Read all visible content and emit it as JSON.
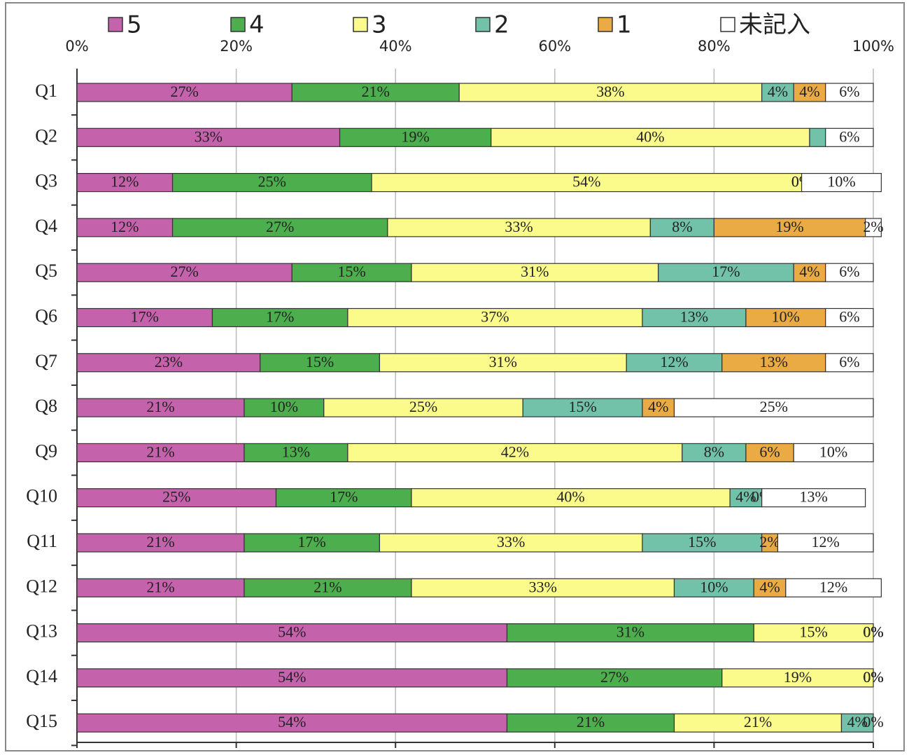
{
  "chart_data": {
    "type": "stacked_bar_horizontal",
    "categories": [
      "Q1",
      "Q2",
      "Q3",
      "Q4",
      "Q5",
      "Q6",
      "Q7",
      "Q8",
      "Q9",
      "Q10",
      "Q11",
      "Q12",
      "Q13",
      "Q14",
      "Q15"
    ],
    "series": [
      {
        "name": "5",
        "color": "#c462ac",
        "values": [
          27,
          33,
          12,
          12,
          27,
          17,
          23,
          21,
          21,
          25,
          21,
          21,
          54,
          54,
          54
        ],
        "value_labels": [
          "27%",
          "33%",
          "12%",
          "12%",
          "27%",
          "17%",
          "23%",
          "21%",
          "21%",
          "25%",
          "21%",
          "21%",
          "54%",
          "54%",
          "54%"
        ]
      },
      {
        "name": "4",
        "color": "#4cae4c",
        "values": [
          21,
          19,
          25,
          27,
          15,
          17,
          15,
          10,
          13,
          17,
          17,
          21,
          31,
          27,
          21
        ],
        "value_labels": [
          "21%",
          "19%",
          "25%",
          "27%",
          "15%",
          "17%",
          "15%",
          "10%",
          "13%",
          "17%",
          "17%",
          "21%",
          "31%",
          "27%",
          "21%"
        ]
      },
      {
        "name": "3",
        "color": "#fbfb8c",
        "values": [
          38,
          40,
          54,
          33,
          31,
          37,
          31,
          25,
          42,
          40,
          33,
          33,
          15,
          19,
          21
        ],
        "value_labels": [
          "38%",
          "40%",
          "54%",
          "33%",
          "31%",
          "37%",
          "31%",
          "25%",
          "42%",
          "40%",
          "33%",
          "33%",
          "15%",
          "19%",
          "21%"
        ]
      },
      {
        "name": "2",
        "color": "#72c2aa",
        "values": [
          4,
          2,
          0,
          8,
          17,
          13,
          12,
          15,
          8,
          4,
          15,
          10,
          0,
          0,
          4
        ],
        "value_labels": [
          "4%",
          null,
          "0%",
          "8%",
          "17%",
          "13%",
          "12%",
          "15%",
          "8%",
          "4%",
          "15%",
          "10%",
          "0%",
          "0%",
          "4%"
        ]
      },
      {
        "name": "1",
        "color": "#eaaa44",
        "values": [
          4,
          0,
          0,
          19,
          4,
          10,
          13,
          4,
          6,
          0,
          2,
          4,
          0,
          0,
          0
        ],
        "value_labels": [
          "4%",
          null,
          "0%",
          "19%",
          "4%",
          "10%",
          "13%",
          "4%",
          "6%",
          "0%",
          "2%",
          "4%",
          "0%",
          "0%",
          null
        ]
      },
      {
        "name": "未記入",
        "color": "#ffffff",
        "values": [
          6,
          6,
          10,
          2,
          6,
          6,
          6,
          25,
          10,
          13,
          12,
          12,
          0,
          0,
          0
        ],
        "value_labels": [
          "6%",
          "6%",
          "10%",
          "2%",
          "6%",
          "6%",
          "6%",
          "25%",
          "10%",
          "13%",
          "12%",
          "12%",
          "0%",
          "0%",
          "0%"
        ]
      }
    ],
    "xlim": [
      0,
      100
    ],
    "xticks": [
      {
        "value": 0,
        "label": "0%"
      },
      {
        "value": 20,
        "label": "20%"
      },
      {
        "value": 40,
        "label": "40%"
      },
      {
        "value": 60,
        "label": "60%"
      },
      {
        "value": 80,
        "label": "80%"
      },
      {
        "value": 100,
        "label": "100%"
      }
    ],
    "grid": true,
    "legend": "top"
  }
}
